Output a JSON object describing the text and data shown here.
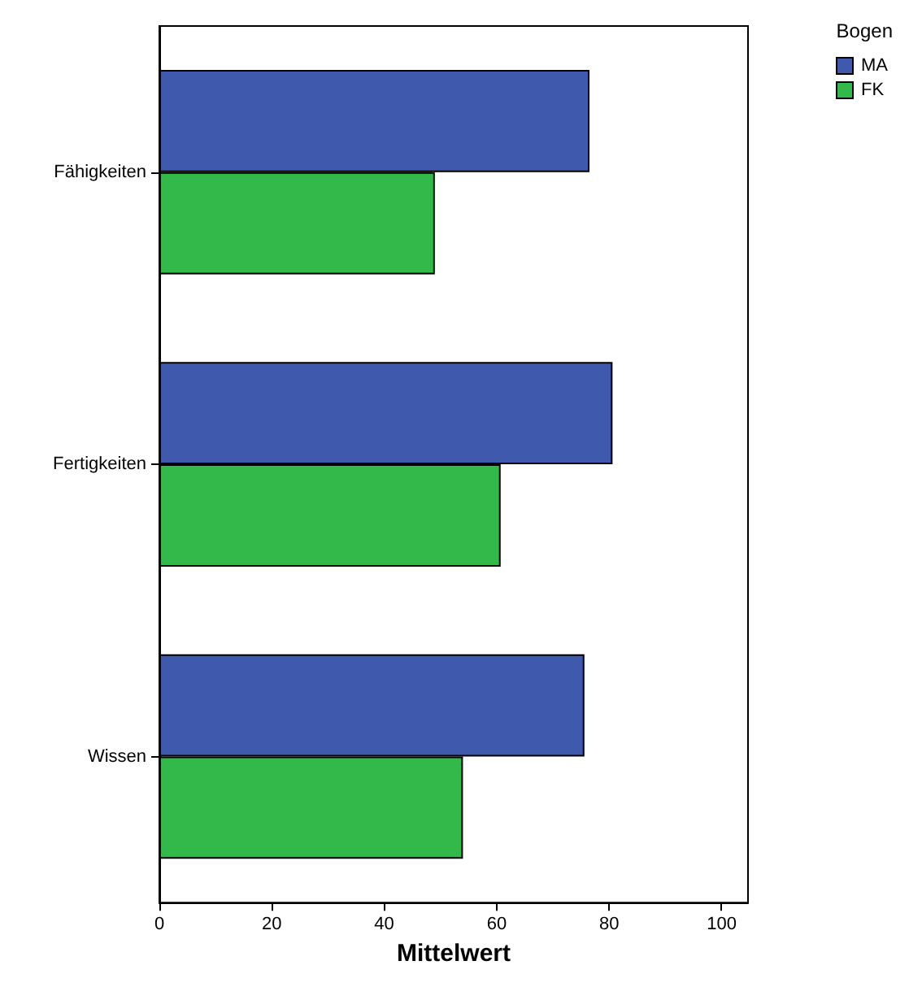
{
  "chart_data": {
    "type": "bar",
    "orientation": "horizontal",
    "xlabel": "Mittelwert",
    "legend_title": "Bogen",
    "legend": "top right",
    "grid": false,
    "categories": [
      "Fähigkeiten",
      "Fertigkeiten",
      "Wissen"
    ],
    "series": [
      {
        "name": "MA",
        "color": "#3f59ad",
        "values": [
          76.5,
          80.6,
          75.6
        ]
      },
      {
        "name": "FK",
        "color": "#33b84a",
        "values": [
          49,
          60.7,
          54
        ]
      }
    ],
    "xlim": [
      0,
      104.7
    ],
    "xticks": [
      0,
      20,
      40,
      60,
      80,
      100
    ]
  }
}
